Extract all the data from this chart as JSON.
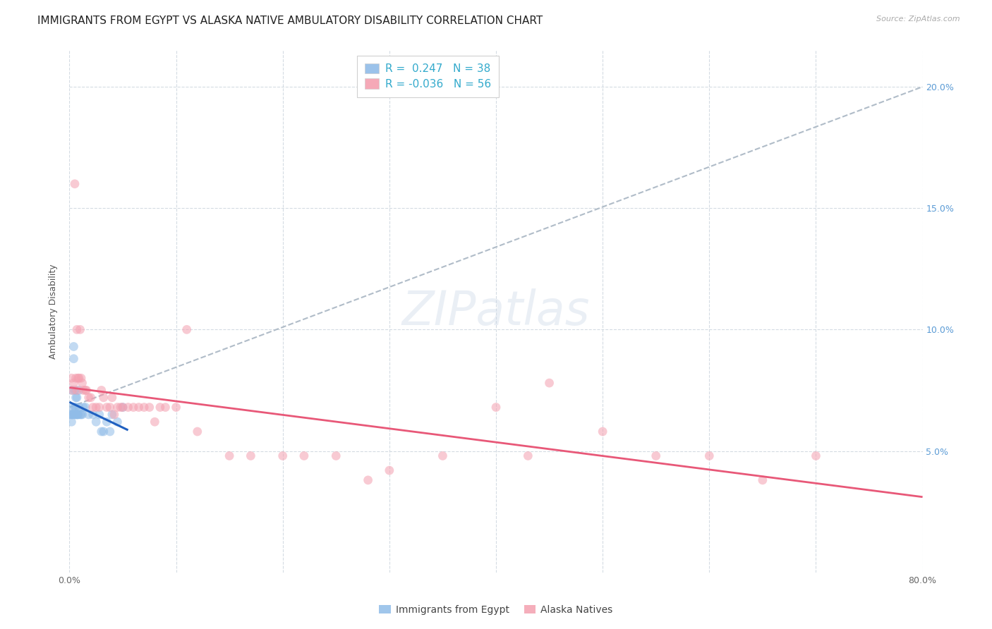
{
  "title": "IMMIGRANTS FROM EGYPT VS ALASKA NATIVE AMBULATORY DISABILITY CORRELATION CHART",
  "source": "Source: ZipAtlas.com",
  "ylabel": "Ambulatory Disability",
  "legend1_label": "Immigrants from Egypt",
  "legend2_label": "Alaska Natives",
  "r1": 0.247,
  "n1": 38,
  "r2": -0.036,
  "n2": 56,
  "blue_color": "#90bce8",
  "pink_color": "#f4a0b0",
  "blue_line_color": "#2060c0",
  "pink_line_color": "#e85878",
  "grey_dash_color": "#b0bcc8",
  "xlim": [
    0.0,
    0.8
  ],
  "ylim": [
    0.0,
    0.215
  ],
  "right_yticks": [
    0.05,
    0.1,
    0.15,
    0.2
  ],
  "right_yticklabels": [
    "5.0%",
    "10.0%",
    "15.0%",
    "20.0%"
  ],
  "xticks": [
    0.0,
    0.1,
    0.2,
    0.3,
    0.4,
    0.5,
    0.6,
    0.7,
    0.8
  ],
  "xticklabels": [
    "0.0%",
    "",
    "",
    "",
    "",
    "",
    "",
    "",
    "80.0%"
  ],
  "blue_scatter_x": [
    0.001,
    0.002,
    0.002,
    0.002,
    0.003,
    0.003,
    0.003,
    0.004,
    0.004,
    0.005,
    0.005,
    0.005,
    0.006,
    0.006,
    0.006,
    0.007,
    0.007,
    0.007,
    0.008,
    0.008,
    0.009,
    0.009,
    0.01,
    0.011,
    0.012,
    0.013,
    0.015,
    0.018,
    0.022,
    0.025,
    0.028,
    0.03,
    0.032,
    0.035,
    0.038,
    0.04,
    0.045,
    0.05
  ],
  "blue_scatter_y": [
    0.065,
    0.075,
    0.065,
    0.062,
    0.068,
    0.065,
    0.065,
    0.088,
    0.093,
    0.068,
    0.065,
    0.075,
    0.072,
    0.065,
    0.068,
    0.065,
    0.072,
    0.065,
    0.065,
    0.065,
    0.075,
    0.068,
    0.065,
    0.065,
    0.065,
    0.068,
    0.068,
    0.065,
    0.065,
    0.062,
    0.065,
    0.058,
    0.058,
    0.062,
    0.058,
    0.065,
    0.062,
    0.068
  ],
  "pink_scatter_x": [
    0.002,
    0.003,
    0.004,
    0.005,
    0.006,
    0.007,
    0.007,
    0.008,
    0.009,
    0.01,
    0.011,
    0.012,
    0.013,
    0.015,
    0.016,
    0.018,
    0.02,
    0.022,
    0.025,
    0.028,
    0.03,
    0.032,
    0.035,
    0.038,
    0.04,
    0.042,
    0.045,
    0.048,
    0.05,
    0.055,
    0.06,
    0.065,
    0.07,
    0.075,
    0.08,
    0.085,
    0.09,
    0.1,
    0.11,
    0.12,
    0.15,
    0.17,
    0.2,
    0.22,
    0.25,
    0.28,
    0.3,
    0.35,
    0.4,
    0.43,
    0.45,
    0.5,
    0.55,
    0.6,
    0.65,
    0.7
  ],
  "pink_scatter_y": [
    0.08,
    0.075,
    0.078,
    0.16,
    0.08,
    0.075,
    0.1,
    0.08,
    0.08,
    0.1,
    0.08,
    0.078,
    0.075,
    0.075,
    0.075,
    0.072,
    0.072,
    0.068,
    0.068,
    0.068,
    0.075,
    0.072,
    0.068,
    0.068,
    0.072,
    0.065,
    0.068,
    0.068,
    0.068,
    0.068,
    0.068,
    0.068,
    0.068,
    0.068,
    0.062,
    0.068,
    0.068,
    0.068,
    0.1,
    0.058,
    0.048,
    0.048,
    0.048,
    0.048,
    0.048,
    0.038,
    0.042,
    0.048,
    0.068,
    0.048,
    0.078,
    0.058,
    0.048,
    0.048,
    0.038,
    0.048
  ],
  "title_fontsize": 11,
  "axis_label_fontsize": 9,
  "tick_fontsize": 9,
  "marker_size": 85,
  "marker_alpha": 0.55,
  "figwidth": 14.06,
  "figheight": 8.92,
  "dpi": 100
}
